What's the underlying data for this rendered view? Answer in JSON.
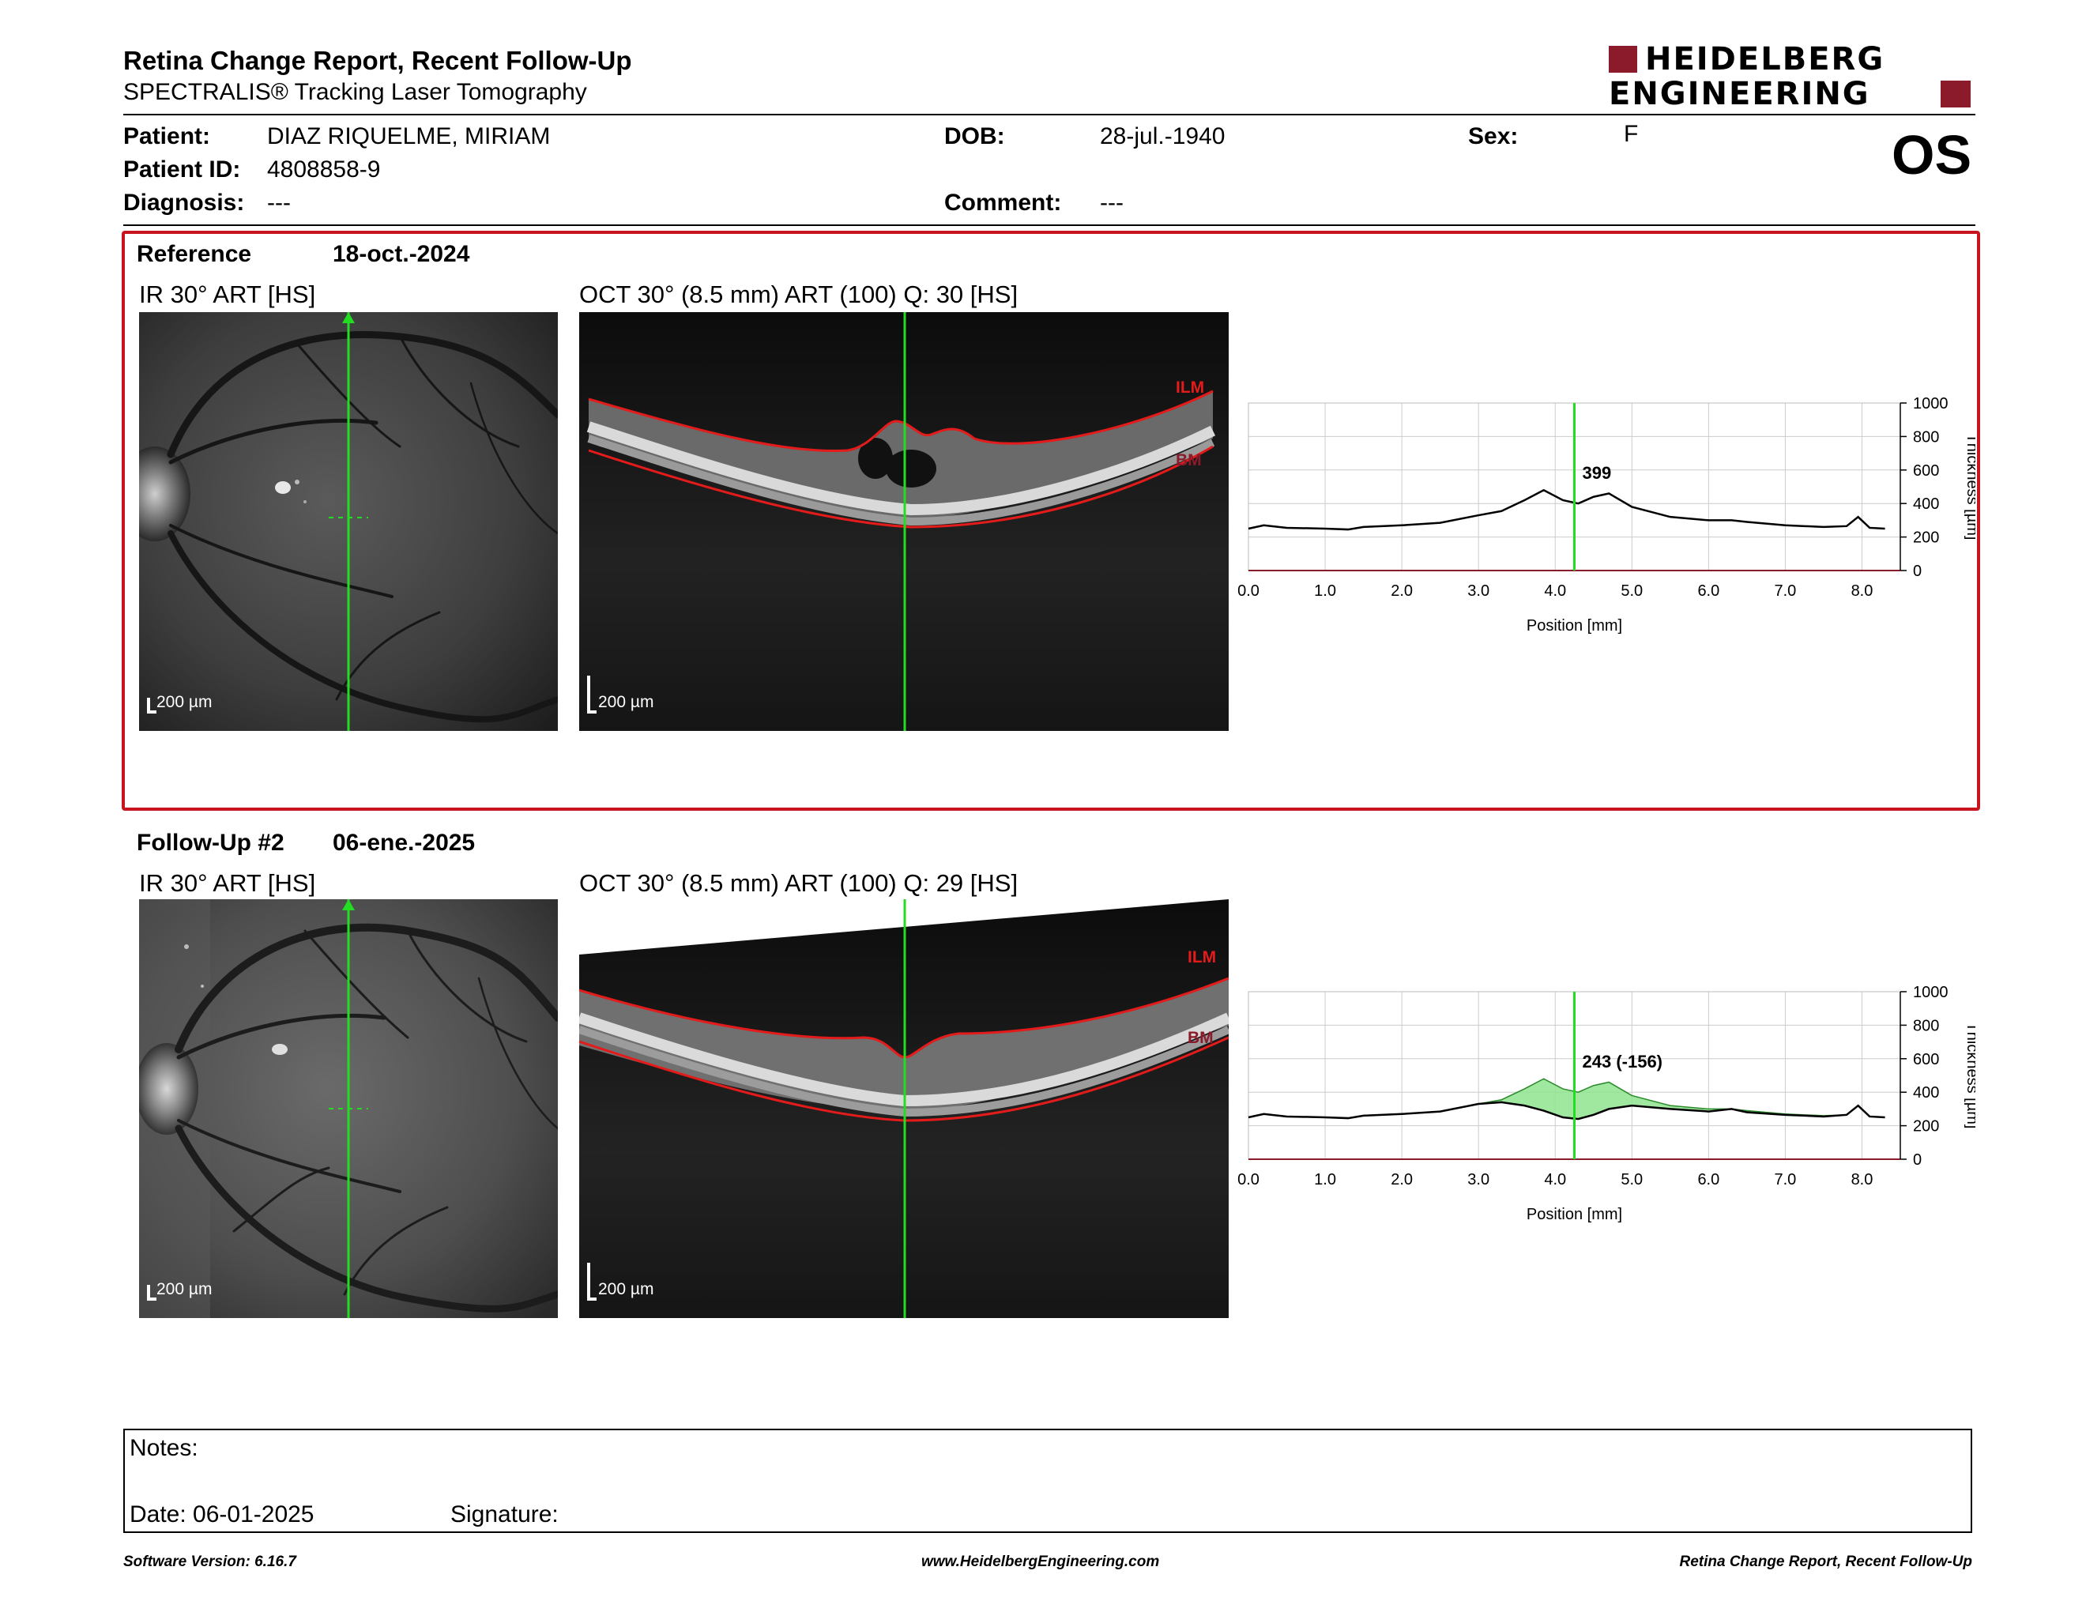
{
  "header": {
    "title": "Retina Change Report, Recent Follow-Up",
    "subtitle": "SPECTRALIS® Tracking Laser Tomography",
    "logo_line1": "HEIDELBERG",
    "logo_line2": "ENGINEERING",
    "eye": "OS"
  },
  "patient": {
    "patient_label": "Patient:",
    "patient_value": "DIAZ RIQUELME, MIRIAM",
    "id_label": "Patient ID:",
    "id_value": "4808858-9",
    "diagnosis_label": "Diagnosis:",
    "diagnosis_value": "---",
    "dob_label": "DOB:",
    "dob_value": "28-jul.-1940",
    "comment_label": "Comment:",
    "comment_value": "---",
    "sex_label": "Sex:",
    "sex_value": "F"
  },
  "reference": {
    "label": "Reference",
    "date": "18-oct.-2024",
    "ir_caption": "IR 30° ART [HS]",
    "oct_caption": "OCT 30° (8.5 mm) ART (100) Q: 30 [HS]",
    "ir_scale": "200 µm",
    "oct_scale": "200 µm",
    "ilm": "ILM",
    "bm": "BM"
  },
  "followup": {
    "label": "Follow-Up #2",
    "date": "06-ene.-2025",
    "ir_caption": "IR 30° ART [HS]",
    "oct_caption": "OCT 30° (8.5 mm) ART (100) Q: 29 [HS]",
    "ir_scale": "200 µm",
    "oct_scale": "200 µm",
    "ilm": "ILM",
    "bm": "BM"
  },
  "notes": {
    "notes_label": "Notes:",
    "date_label": "Date: 06-01-2025",
    "signature_label": "Signature:"
  },
  "footer": {
    "left": "Software Version: 6.16.7",
    "center": "www.HeidelbergEngineering.com",
    "right": "Retina Change Report, Recent Follow-Up"
  },
  "colors": {
    "brand_red": "#8b1a2b",
    "frame_red": "#c8141e",
    "scan_green": "#22dd22",
    "diff_fill": "#8fe38f"
  },
  "chart_data": [
    {
      "type": "line",
      "name": "reference-thickness-profile",
      "xlabel": "Position [mm]",
      "ylabel": "Thickness [µm]",
      "xlim": [
        0,
        8.5
      ],
      "ylim": [
        0,
        1000
      ],
      "x_ticks": [
        "0.0",
        "1.0",
        "2.0",
        "3.0",
        "4.0",
        "5.0",
        "6.0",
        "7.0",
        "8.0"
      ],
      "y_ticks": [
        "0",
        "200",
        "400",
        "600",
        "800",
        "1000"
      ],
      "grid": true,
      "cursor_x": 4.25,
      "cursor_label": "399",
      "x": [
        0.0,
        0.2,
        0.5,
        1.0,
        1.3,
        1.5,
        2.0,
        2.5,
        3.0,
        3.3,
        3.6,
        3.85,
        4.1,
        4.3,
        4.5,
        4.7,
        5.0,
        5.5,
        6.0,
        6.3,
        6.5,
        7.0,
        7.5,
        7.8,
        7.95,
        8.1,
        8.3
      ],
      "series": [
        {
          "values": [
            250,
            270,
            255,
            250,
            245,
            260,
            270,
            285,
            330,
            355,
            420,
            480,
            420,
            400,
            440,
            460,
            380,
            320,
            300,
            300,
            290,
            270,
            260,
            265,
            320,
            255,
            250
          ]
        }
      ]
    },
    {
      "type": "line",
      "name": "followup-thickness-profile",
      "xlabel": "Position [mm]",
      "ylabel": "Thickness [µm]",
      "xlim": [
        0,
        8.5
      ],
      "ylim": [
        0,
        1000
      ],
      "x_ticks": [
        "0.0",
        "1.0",
        "2.0",
        "3.0",
        "4.0",
        "5.0",
        "6.0",
        "7.0",
        "8.0"
      ],
      "y_ticks": [
        "0",
        "200",
        "400",
        "600",
        "800",
        "1000"
      ],
      "grid": true,
      "cursor_x": 4.25,
      "cursor_label": "243 (-156)",
      "x": [
        0.0,
        0.2,
        0.5,
        1.0,
        1.3,
        1.5,
        2.0,
        2.5,
        3.0,
        3.3,
        3.6,
        3.85,
        4.1,
        4.3,
        4.5,
        4.7,
        5.0,
        5.5,
        6.0,
        6.3,
        6.5,
        7.0,
        7.5,
        7.8,
        7.95,
        8.1,
        8.3
      ],
      "series": [
        {
          "values": [
            250,
            270,
            255,
            250,
            245,
            260,
            270,
            285,
            330,
            340,
            320,
            290,
            250,
            240,
            265,
            300,
            320,
            300,
            285,
            300,
            280,
            265,
            255,
            265,
            320,
            255,
            250
          ]
        },
        {
          "values": [
            250,
            270,
            255,
            250,
            245,
            260,
            270,
            285,
            330,
            355,
            420,
            480,
            420,
            400,
            440,
            460,
            380,
            320,
            300,
            300,
            290,
            270,
            260,
            265,
            320,
            255,
            250
          ]
        }
      ]
    }
  ]
}
